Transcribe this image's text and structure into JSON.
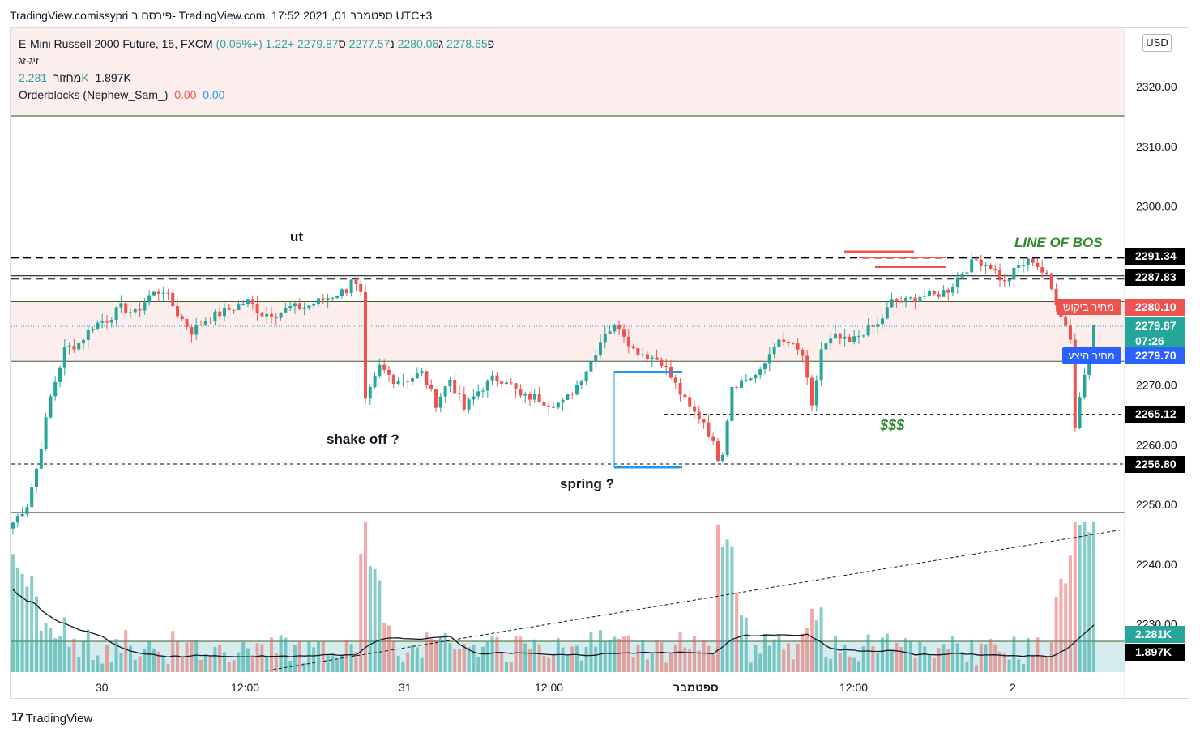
{
  "header": {
    "title": "TradingView.comissypri פירסם ב- TradingView.com, 17:52 2021 ,01 ספטמבר UTC+3"
  },
  "legend": {
    "symbol": "E-Mini Russell 2000 Future, 15, FXCM",
    "open_label": "פ",
    "open": "2278.65",
    "high_label": "ג",
    "high": "2280.06",
    "low_label": "נ",
    "low": "2277.57",
    "close_label": "ס",
    "close": "2279.87",
    "change": "+1.22 (+0.05%)",
    "zigzag": "זיג-זג",
    "volume_label": "מחזור",
    "volume_value": "2.281K",
    "volume_ma": "1.897K",
    "indicator": "Orderblocks (Nephew_Sam_)",
    "indicator_v1": "0.00",
    "indicator_v2": "0.00"
  },
  "currency": "USD",
  "annotations": {
    "ut": "ut",
    "shake_off": "shake off ?",
    "spring": "spring ?",
    "line_of_bos": "LINE OF BOS",
    "dollars": "$$$"
  },
  "price_scale": {
    "ticks": [
      "2320.00",
      "2310.00",
      "2300.00",
      "2270.00",
      "2260.00",
      "2250.00",
      "2240.00",
      "2230.00"
    ],
    "labels": [
      {
        "text": "2291.34",
        "kind": "black"
      },
      {
        "text": "2287.83",
        "kind": "black"
      },
      {
        "text": "2280.10",
        "kind": "red",
        "tag": "מחיר ביקוש"
      },
      {
        "text": "2279.87",
        "kind": "green",
        "sub": "07:26"
      },
      {
        "text": "2279.70",
        "kind": "blue",
        "tag": "מחיר היצע"
      },
      {
        "text": "2265.12",
        "kind": "black"
      },
      {
        "text": "2256.80",
        "kind": "black"
      },
      {
        "text": "2.281K",
        "kind": "green"
      },
      {
        "text": "1.897K",
        "kind": "black"
      }
    ]
  },
  "time_axis": [
    "30",
    "12:00",
    "31",
    "12:00",
    "ספטמבר",
    "12:00",
    "2"
  ],
  "colors": {
    "up": "#26a69a",
    "down": "#ef5350",
    "blue": "#2196f3",
    "bos": "#2e8b2e",
    "zone": "#fdeeee",
    "volzone": "#d5ecef"
  },
  "chart_data": {
    "type": "candlestick",
    "symbol": "E-Mini Russell 2000 Future",
    "interval": "15",
    "ylim": [
      2246,
      2328
    ],
    "levels": [
      2291.34,
      2287.83,
      2265.12,
      2256.8
    ],
    "zone_levels": [
      2284.0,
      2274.0,
      2266.5
    ],
    "anchors": [
      [
        0,
        2247
      ],
      [
        3,
        2250
      ],
      [
        5,
        2256
      ],
      [
        8,
        2268
      ],
      [
        11,
        2276
      ],
      [
        14,
        2277
      ],
      [
        17,
        2280
      ],
      [
        20,
        2281
      ],
      [
        23,
        2283
      ],
      [
        26,
        2282
      ],
      [
        29,
        2285
      ],
      [
        32,
        2286
      ],
      [
        35,
        2282
      ],
      [
        38,
        2279
      ],
      [
        41,
        2281
      ],
      [
        44,
        2282
      ],
      [
        47,
        2283
      ],
      [
        50,
        2284
      ],
      [
        53,
        2282
      ],
      [
        56,
        2282
      ],
      [
        59,
        2283
      ],
      [
        62,
        2283
      ],
      [
        65,
        2284
      ],
      [
        68,
        2285
      ],
      [
        71,
        2286
      ],
      [
        72,
        2288
      ],
      [
        74,
        2285
      ],
      [
        75,
        2267
      ],
      [
        78,
        2273
      ],
      [
        81,
        2271
      ],
      [
        84,
        2271
      ],
      [
        87,
        2272
      ],
      [
        90,
        2267
      ],
      [
        93,
        2271
      ],
      [
        96,
        2266
      ],
      [
        99,
        2269
      ],
      [
        102,
        2271
      ],
      [
        105,
        2271
      ],
      [
        108,
        2268
      ],
      [
        111,
        2268
      ],
      [
        114,
        2267
      ],
      [
        117,
        2267
      ],
      [
        120,
        2270
      ],
      [
        123,
        2274
      ],
      [
        126,
        2279
      ],
      [
        129,
        2280
      ],
      [
        132,
        2276
      ],
      [
        135,
        2275
      ],
      [
        138,
        2274
      ],
      [
        141,
        2270
      ],
      [
        144,
        2266
      ],
      [
        147,
        2264
      ],
      [
        150,
        2258
      ],
      [
        151,
        2259
      ],
      [
        153,
        2270
      ],
      [
        156,
        2271
      ],
      [
        159,
        2272
      ],
      [
        162,
        2277
      ],
      [
        165,
        2277
      ],
      [
        168,
        2275
      ],
      [
        170,
        2266
      ],
      [
        172,
        2276
      ],
      [
        175,
        2278
      ],
      [
        178,
        2277
      ],
      [
        181,
        2279
      ],
      [
        184,
        2280
      ],
      [
        187,
        2284
      ],
      [
        190,
        2284
      ],
      [
        193,
        2285
      ],
      [
        196,
        2285
      ],
      [
        199,
        2286
      ],
      [
        202,
        2289
      ],
      [
        205,
        2291
      ],
      [
        208,
        2290
      ],
      [
        211,
        2287
      ],
      [
        214,
        2290
      ],
      [
        217,
        2291
      ],
      [
        220,
        2288
      ],
      [
        222,
        2284
      ],
      [
        225,
        2278
      ],
      [
        226,
        2263
      ],
      [
        227,
        2268
      ],
      [
        229,
        2276
      ],
      [
        230,
        2280
      ]
    ]
  }
}
